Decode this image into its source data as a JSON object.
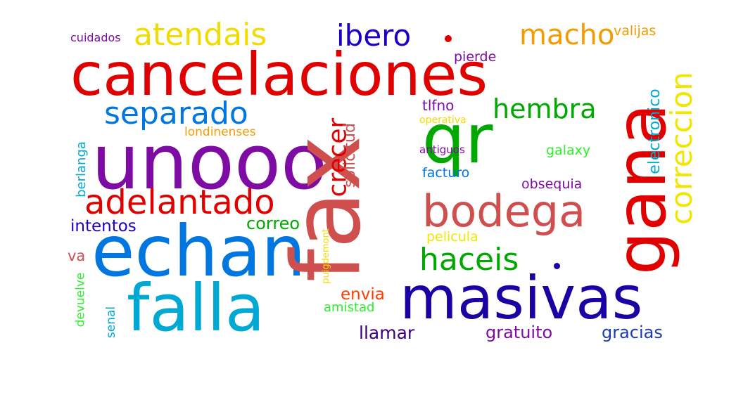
{
  "words": [
    {
      "text": "cancelaciones",
      "color": "#e00000"
    },
    {
      "text": "unooo",
      "color": "#7e0ba3"
    },
    {
      "text": "echan",
      "color": "#0077e0"
    },
    {
      "text": "falla",
      "color": "#00a8d4"
    },
    {
      "text": "masivas",
      "color": "#1c00a3"
    },
    {
      "text": "fax",
      "color": "#cf4e4e"
    },
    {
      "text": "qr",
      "color": "#00a800"
    },
    {
      "text": "gana",
      "color": "#e00000"
    },
    {
      "text": "bodega",
      "color": "#cf4e4e"
    },
    {
      "text": "correccion",
      "color": "#f2e600"
    },
    {
      "text": "separado",
      "color": "#0077e0"
    },
    {
      "text": "adelantado",
      "color": "#e00000"
    },
    {
      "text": "atendais",
      "color": "#f2dc00"
    },
    {
      "text": "ibero",
      "color": "#1c00c8"
    },
    {
      "text": "macho",
      "color": "#f59b00"
    },
    {
      "text": "hembra",
      "color": "#00a800"
    },
    {
      "text": "haceis",
      "color": "#00a800"
    },
    {
      "text": "crecer",
      "color": "#e00000"
    },
    {
      "text": "solicitud",
      "color": "#cf4e4e"
    },
    {
      "text": "electronico",
      "color": "#00a8d4"
    },
    {
      "text": "intentos",
      "color": "#1c00c8"
    },
    {
      "text": "correo",
      "color": "#00a800"
    },
    {
      "text": "llamar",
      "color": "#3b007e"
    },
    {
      "text": "gratuito",
      "color": "#7e0ba3"
    },
    {
      "text": "gracias",
      "color": "#1c3bb0"
    },
    {
      "text": "envia",
      "color": "#ff3b00"
    },
    {
      "text": "amistad",
      "color": "#2cf02c"
    },
    {
      "text": "tlfno",
      "color": "#7e0ba3"
    },
    {
      "text": "pierde",
      "color": "#7e0ba3"
    },
    {
      "text": "valijas",
      "color": "#f59b00"
    },
    {
      "text": "cuidados",
      "color": "#7e0ba3"
    },
    {
      "text": "londinenses",
      "color": "#f59b00"
    },
    {
      "text": "berlanga",
      "color": "#00a8d4"
    },
    {
      "text": "va",
      "color": "#cf4e4e"
    },
    {
      "text": "devuelve",
      "color": "#2cf02c"
    },
    {
      "text": "senal",
      "color": "#00a8d4"
    },
    {
      "text": "puigdemont",
      "color": "#f2dc00"
    },
    {
      "text": "pelicula",
      "color": "#f2e600"
    },
    {
      "text": "obsequia",
      "color": "#7e0ba3"
    },
    {
      "text": "facturo",
      "color": "#0077e0"
    },
    {
      "text": "galaxy",
      "color": "#2cf02c"
    },
    {
      "text": "antiguos",
      "color": "#7e0ba3"
    },
    {
      "text": "operativa",
      "color": "#f2dc00"
    }
  ]
}
